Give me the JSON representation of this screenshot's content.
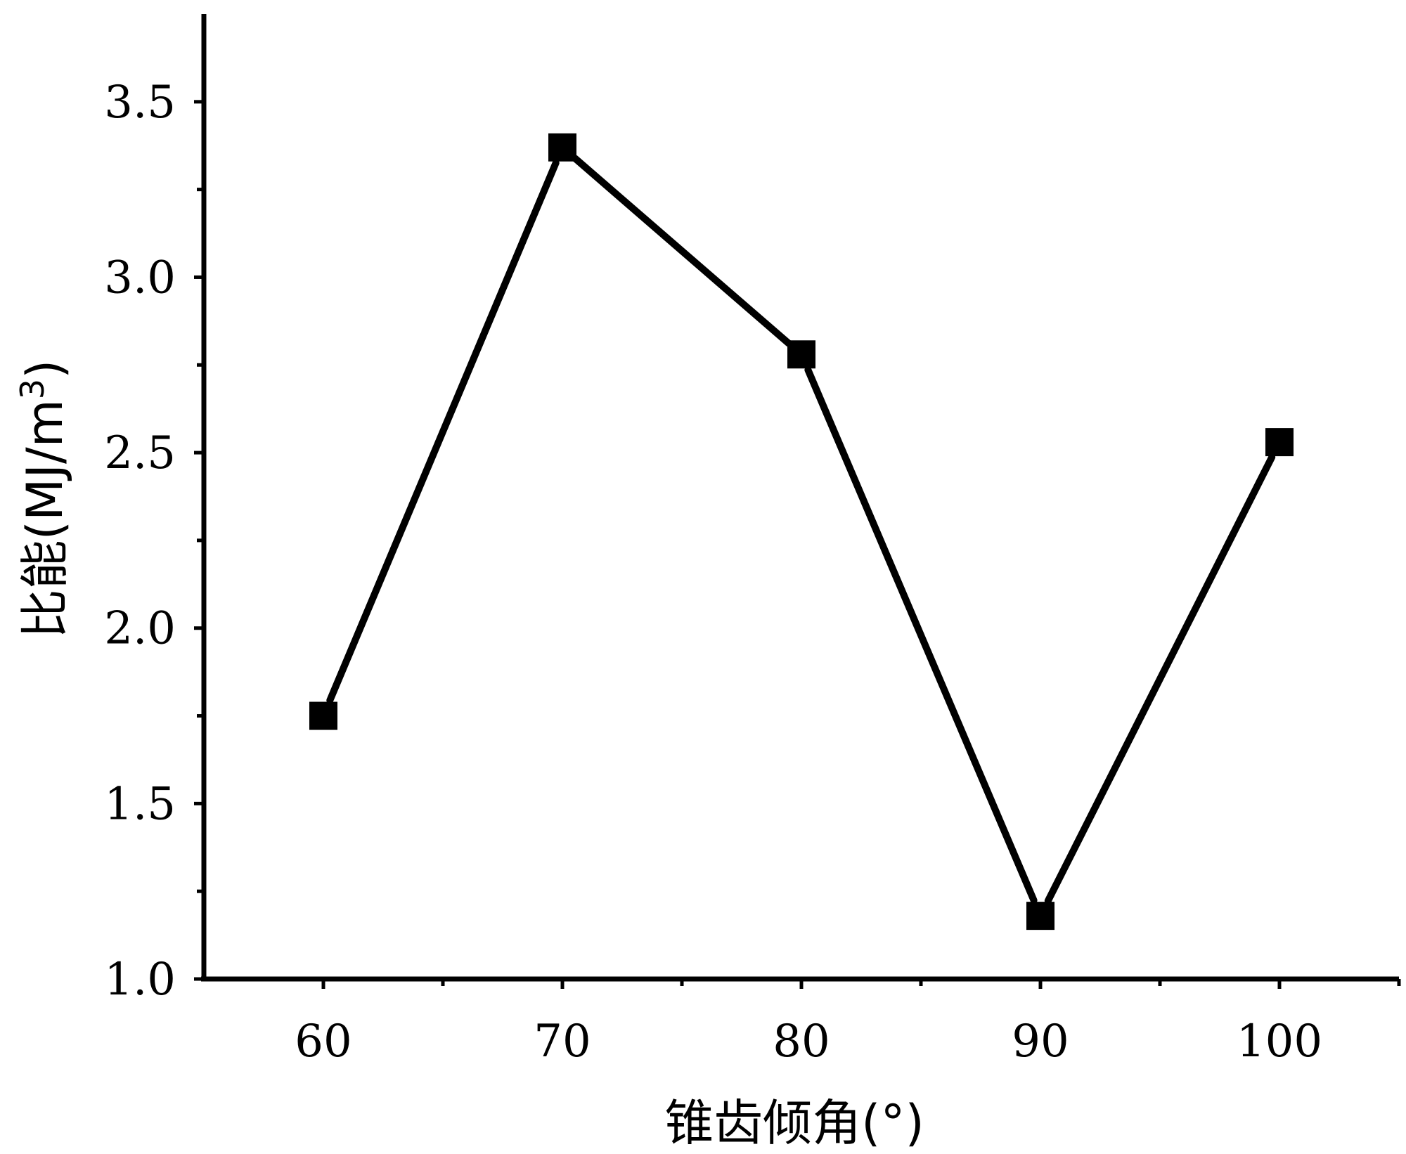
{
  "chart_data": {
    "type": "line",
    "x": [
      60,
      70,
      80,
      90,
      100
    ],
    "series": [
      {
        "values": [
          1.75,
          3.37,
          2.78,
          1.18,
          2.53
        ]
      }
    ],
    "xlabel": "锥齿倾角(°)",
    "ylabel_prefix": "比能(MJ/m",
    "ylabel_superscript": "3",
    "ylabel_suffix": ")",
    "xlim": [
      55,
      105
    ],
    "ylim": [
      1.0,
      3.75
    ],
    "x_ticks": [
      60,
      70,
      80,
      90,
      100
    ],
    "x_tick_labels": [
      "60",
      "70",
      "80",
      "90",
      "100"
    ],
    "y_ticks": [
      1.0,
      1.5,
      2.0,
      2.5,
      3.0,
      3.5
    ],
    "y_tick_labels": [
      "1.0",
      "1.5",
      "2.0",
      "2.5",
      "3.0",
      "3.5"
    ],
    "x_minor_ticks": [
      65,
      75,
      85,
      95,
      105
    ],
    "y_minor_ticks": [
      1.25,
      1.75,
      2.25,
      2.75,
      3.25
    ],
    "marker": "square",
    "grid": false,
    "line_color": "#000000",
    "marker_color": "#000000"
  }
}
